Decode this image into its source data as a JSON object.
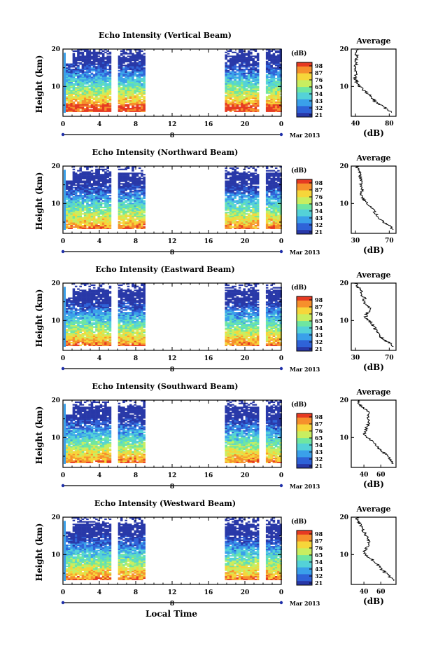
{
  "chart_data": [
    {
      "type": "heatmap",
      "title": "Echo Intensity (Vertical Beam)",
      "ylabel": "Height (km)",
      "ylim": [
        2,
        20
      ],
      "yticks": [
        "20",
        "10"
      ],
      "xlim": [
        0,
        24
      ],
      "xticks": [
        "0",
        "4",
        "8",
        "12",
        "16",
        "20",
        "0"
      ],
      "day_label": "8",
      "date_label": "Mar 2013",
      "gap_intervals": [
        [
          5.3,
          6.0
        ],
        [
          9.0,
          17.7
        ],
        [
          21.5,
          22.2
        ]
      ],
      "colorbar": {
        "unit": "(dB)",
        "ticks": [
          "98",
          "87",
          "76",
          "65",
          "54",
          "43",
          "32",
          "21"
        ]
      },
      "average": {
        "title": "Average",
        "xlabel": "(dB)",
        "xlim": [
          35,
          88
        ],
        "xticks": [
          "40",
          "80"
        ],
        "heights": [
          3,
          4,
          5,
          6,
          7,
          8,
          9,
          10,
          11,
          12,
          13,
          14,
          15,
          16,
          17,
          18,
          19,
          20
        ],
        "values": [
          83,
          77,
          70,
          63,
          60,
          55,
          50,
          45,
          42,
          40,
          40,
          41,
          39,
          41,
          40,
          42,
          40,
          42
        ]
      }
    },
    {
      "type": "heatmap",
      "title": "Echo Intensity (Northward Beam)",
      "ylabel": "Height (km)",
      "ylim": [
        2,
        20
      ],
      "yticks": [
        "20",
        "10"
      ],
      "xlim": [
        0,
        24
      ],
      "xticks": [
        "0",
        "4",
        "8",
        "12",
        "16",
        "20",
        "0"
      ],
      "day_label": "8",
      "date_label": "Mar 2013",
      "gap_intervals": [
        [
          5.3,
          6.0
        ],
        [
          9.0,
          17.7
        ],
        [
          21.5,
          22.2
        ]
      ],
      "colorbar": {
        "unit": "(dB)",
        "ticks": [
          "98",
          "87",
          "76",
          "65",
          "54",
          "43",
          "32",
          "21"
        ]
      },
      "average": {
        "title": "Average",
        "xlabel": "(dB)",
        "xlim": [
          25,
          78
        ],
        "xticks": [
          "30",
          "70"
        ],
        "heights": [
          3,
          4,
          5,
          6,
          7,
          8,
          9,
          10,
          11,
          12,
          13,
          14,
          15,
          16,
          17,
          18,
          19,
          20
        ],
        "values": [
          75,
          70,
          64,
          58,
          55,
          52,
          48,
          43,
          40,
          38,
          37,
          39,
          36,
          38,
          35,
          36,
          33,
          31
        ]
      }
    },
    {
      "type": "heatmap",
      "title": "Echo Intensity (Eastward Beam)",
      "ylabel": "Height (km)",
      "ylim": [
        2,
        20
      ],
      "yticks": [
        "20",
        "10"
      ],
      "xlim": [
        0,
        24
      ],
      "xticks": [
        "0",
        "4",
        "8",
        "12",
        "16",
        "20",
        "0"
      ],
      "day_label": "8",
      "date_label": "Mar 2013",
      "gap_intervals": [
        [
          5.3,
          6.0
        ],
        [
          9.0,
          17.7
        ],
        [
          21.5,
          22.2
        ]
      ],
      "colorbar": {
        "unit": "(dB)",
        "ticks": [
          "98",
          "87",
          "76",
          "65",
          "54",
          "43",
          "32",
          "21"
        ]
      },
      "average": {
        "title": "Average",
        "xlabel": "(dB)",
        "xlim": [
          25,
          78
        ],
        "xticks": [
          "30",
          "70"
        ],
        "heights": [
          3,
          4,
          5,
          6,
          7,
          8,
          9,
          10,
          11,
          12,
          13,
          14,
          15,
          16,
          17,
          18,
          19,
          20
        ],
        "values": [
          75,
          70,
          63,
          58,
          55,
          53,
          50,
          45,
          42,
          44,
          48,
          44,
          40,
          41,
          37,
          38,
          33,
          30
        ]
      }
    },
    {
      "type": "heatmap",
      "title": "Echo Intensity (Southward Beam)",
      "ylabel": "Height (km)",
      "ylim": [
        2,
        20
      ],
      "yticks": [
        "20",
        "10"
      ],
      "xlim": [
        0,
        24
      ],
      "xticks": [
        "0",
        "4",
        "8",
        "12",
        "16",
        "20",
        "0"
      ],
      "day_label": "8",
      "date_label": "Mar 2013",
      "gap_intervals": [
        [
          5.3,
          6.0
        ],
        [
          9.0,
          17.7
        ],
        [
          21.5,
          22.2
        ]
      ],
      "colorbar": {
        "unit": "(dB)",
        "ticks": [
          "98",
          "87",
          "76",
          "65",
          "54",
          "43",
          "32",
          "21"
        ]
      },
      "average": {
        "title": "Average",
        "xlabel": "(dB)",
        "xlim": [
          25,
          78
        ],
        "xticks": [
          "40",
          "60"
        ],
        "heights": [
          3,
          4,
          5,
          6,
          7,
          8,
          9,
          10,
          11,
          12,
          13,
          14,
          15,
          16,
          17,
          18,
          19,
          20
        ],
        "values": [
          75,
          72,
          68,
          63,
          58,
          55,
          50,
          44,
          40,
          42,
          44,
          46,
          44,
          46,
          44,
          38,
          34,
          32
        ]
      }
    },
    {
      "type": "heatmap",
      "title": "Echo Intensity (Westward Beam)",
      "ylabel": "Height (km)",
      "ylim": [
        2,
        20
      ],
      "yticks": [
        "20",
        "10"
      ],
      "xlim": [
        0,
        24
      ],
      "xticks": [
        "0",
        "4",
        "8",
        "12",
        "16",
        "20",
        "0"
      ],
      "day_label": "8",
      "date_label": "Mar 2013",
      "gap_intervals": [
        [
          5.3,
          6.0
        ],
        [
          9.0,
          17.7
        ],
        [
          21.5,
          22.2
        ]
      ],
      "colorbar": {
        "unit": "(dB)",
        "ticks": [
          "98",
          "87",
          "76",
          "65",
          "54",
          "43",
          "32",
          "21"
        ]
      },
      "average": {
        "title": "Average",
        "xlabel": "(dB)",
        "xlim": [
          25,
          78
        ],
        "xticks": [
          "40",
          "60"
        ],
        "heights": [
          3,
          4,
          5,
          6,
          7,
          8,
          9,
          10,
          11,
          12,
          13,
          14,
          15,
          16,
          17,
          18,
          19,
          20
        ],
        "values": [
          75,
          71,
          66,
          61,
          57,
          53,
          48,
          42,
          40,
          44,
          46,
          45,
          43,
          40,
          38,
          36,
          33,
          31
        ]
      }
    }
  ],
  "xlabel": "Local Time",
  "colormap": [
    "#2838a8",
    "#2f63d8",
    "#3aa0ea",
    "#54d2d8",
    "#6fe6a0",
    "#c8ee60",
    "#f6d63a",
    "#f6902c",
    "#e63a22"
  ]
}
